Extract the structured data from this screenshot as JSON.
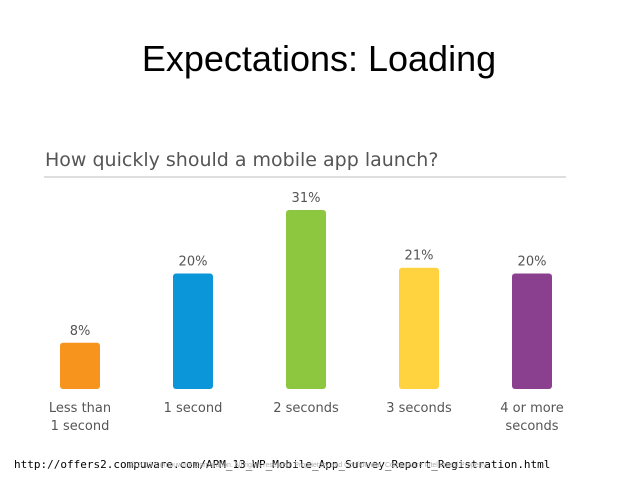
{
  "slide": {
    "title": "Expectations: Loading",
    "url": "http://offers2.compuware.com/APM_13_WP_Mobile_App_Survey_Report_Registration.html",
    "footer_note": "© 2013 Compuware Corporation. All rights reserved. Proprietary and Confidential. Compuware Intellectual Property."
  },
  "chart_data": {
    "type": "bar",
    "title": "How quickly should a mobile app launch?",
    "categories": [
      [
        "Less than",
        "1 second"
      ],
      [
        "1 second"
      ],
      [
        "2 seconds"
      ],
      [
        "3 seconds"
      ],
      [
        "4 or more",
        "seconds"
      ]
    ],
    "values": [
      8,
      20,
      31,
      21,
      20
    ],
    "value_labels": [
      "8%",
      "20%",
      "31%",
      "21%",
      "20%"
    ],
    "colors": [
      "#f7941d",
      "#0a96d8",
      "#8dc63f",
      "#ffd23f",
      "#8b3f8f"
    ],
    "ylim": [
      0,
      31
    ],
    "grid": false,
    "legend": "none"
  }
}
